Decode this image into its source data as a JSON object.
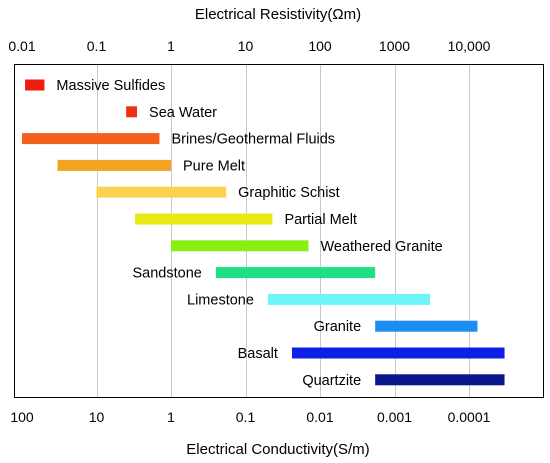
{
  "chart_data": {
    "type": "bar",
    "orientation": "horizontal-range",
    "title": "",
    "top_axis": {
      "label": "Electrical Resistivity(Ωm)",
      "scale": "log",
      "ticks": [
        {
          "value": 0.01,
          "label": "0.01"
        },
        {
          "value": 0.1,
          "label": "0.1"
        },
        {
          "value": 1,
          "label": "1"
        },
        {
          "value": 10,
          "label": "10"
        },
        {
          "value": 100,
          "label": "100"
        },
        {
          "value": 1000,
          "label": "1000"
        },
        {
          "value": 10000,
          "label": "10,000"
        }
      ]
    },
    "bottom_axis": {
      "label": "Electrical Conductivity(S/m)",
      "scale": "log",
      "ticks": [
        {
          "value": 100,
          "label": "100"
        },
        {
          "value": 10,
          "label": "10"
        },
        {
          "value": 1,
          "label": "1"
        },
        {
          "value": 0.1,
          "label": "0.1"
        },
        {
          "value": 0.01,
          "label": "0.01"
        },
        {
          "value": 0.001,
          "label": "0.001"
        },
        {
          "value": 0.0001,
          "label": "0.0001"
        }
      ]
    },
    "resistivity_range": [
      0.01,
      30000
    ],
    "grid": true,
    "series": [
      {
        "name": "Massive Sulfides",
        "min": 0.011,
        "max": 0.02,
        "color": "#ee1c0e",
        "label_side": "right"
      },
      {
        "name": "Sea Water",
        "min": 0.25,
        "max": 0.35,
        "color": "#ee3112",
        "label_side": "right"
      },
      {
        "name": "Brines/Geothermal Fluids",
        "min": 0.01,
        "max": 0.7,
        "color": "#f2621e",
        "label_side": "right"
      },
      {
        "name": "Pure Melt",
        "min": 0.03,
        "max": 1.0,
        "color": "#f4a321",
        "label_side": "right"
      },
      {
        "name": "Graphitic Schist",
        "min": 0.1,
        "max": 5.5,
        "color": "#fbd24f",
        "label_side": "right"
      },
      {
        "name": "Partial Melt",
        "min": 0.33,
        "max": 23,
        "color": "#e6ea12",
        "label_side": "right"
      },
      {
        "name": "Weathered Granite",
        "min": 1.0,
        "max": 70,
        "color": "#88ee14",
        "label_side": "right"
      },
      {
        "name": "Sandstone",
        "min": 4,
        "max": 550,
        "color": "#1fe089",
        "label_side": "left"
      },
      {
        "name": "Limestone",
        "min": 20,
        "max": 3000,
        "color": "#6ef4f6",
        "label_side": "left"
      },
      {
        "name": "Granite",
        "min": 550,
        "max": 13000,
        "color": "#1b8ef0",
        "label_side": "left"
      },
      {
        "name": "Basalt",
        "min": 42,
        "max": 30000,
        "color": "#0d1fe4",
        "label_side": "left"
      },
      {
        "name": "Quartzite",
        "min": 550,
        "max": 30000,
        "color": "#0a178a",
        "label_side": "left"
      }
    ]
  }
}
